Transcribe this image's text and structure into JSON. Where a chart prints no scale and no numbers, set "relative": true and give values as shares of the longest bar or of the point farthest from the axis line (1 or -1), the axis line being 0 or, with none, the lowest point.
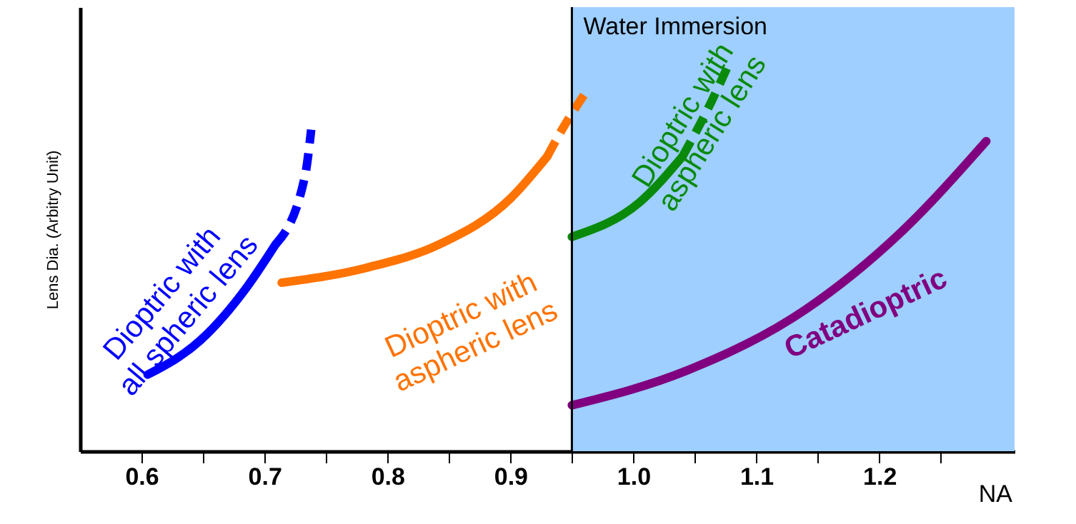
{
  "chart_data": {
    "type": "line",
    "relative": true,
    "xlabel": "NA",
    "ylabel": "Lens Dia. (Arbitry Unit)",
    "xlim": [
      0.55,
      1.31
    ],
    "xticks": [
      0.6,
      {
        "value": 0.65,
        "label": null
      },
      0.7,
      {
        "value": 0.75,
        "label": null
      },
      0.8,
      {
        "value": 0.85,
        "label": null
      },
      0.9,
      {
        "value": 0.95,
        "label": null
      },
      {
        "value": 1.0,
        "label": "1.0"
      },
      {
        "value": 1.05,
        "label": null
      },
      1.1,
      {
        "value": 1.15,
        "label": null
      },
      1.2,
      {
        "value": 1.25,
        "label": null
      }
    ],
    "tick_labels": "x",
    "grid": false,
    "bands": [
      {
        "axis": "x",
        "from": 0.95,
        "to": 1.31,
        "color": "#9ecfff"
      }
    ],
    "ref_lines": [
      {
        "axis": "x",
        "value": 0.95,
        "color": "#000000"
      }
    ],
    "annotations": [
      "Water Immersion"
    ],
    "series": [
      {
        "name": "Dioptric with all spheric lens",
        "color": "#0000ff",
        "line_style": "solid",
        "x": [
          0.605,
          0.648,
          0.686,
          0.709
        ],
        "values": [
          0.2,
          0.29,
          0.43,
          0.54
        ]
      },
      {
        "color": "#0000ff",
        "line_style": "dashed",
        "x": [
          0.709,
          0.733,
          0.738
        ],
        "values": [
          0.54,
          0.72,
          0.84
        ]
      },
      {
        "name": "Dioptric with aspheric lens",
        "color": "#ff7300",
        "line_style": "solid",
        "x": [
          0.714,
          0.784,
          0.842,
          0.9,
          0.93
        ],
        "values": [
          0.44,
          0.48,
          0.54,
          0.66,
          0.77
        ]
      },
      {
        "color": "#ff7300",
        "line_style": "dashed",
        "x": [
          0.93,
          0.942,
          0.964
        ],
        "values": [
          0.77,
          0.84,
          0.95
        ]
      },
      {
        "name": "Dioptric with aspheric lens",
        "color": "#0a8a0a",
        "line_style": "solid",
        "x": [
          0.95,
          1.005,
          1.04
        ],
        "values": [
          0.56,
          0.65,
          0.77
        ]
      },
      {
        "color": "#0a8a0a",
        "line_style": "dashed",
        "x": [
          1.04,
          1.063,
          1.076
        ],
        "values": [
          0.77,
          0.91,
          1.0
        ]
      },
      {
        "name": "Catadioptric",
        "color": "#800080",
        "line_style": "solid",
        "x": [
          0.95,
          1.043,
          1.14,
          1.217,
          1.287
        ],
        "values": [
          0.12,
          0.21,
          0.37,
          0.57,
          0.81
        ]
      }
    ]
  }
}
